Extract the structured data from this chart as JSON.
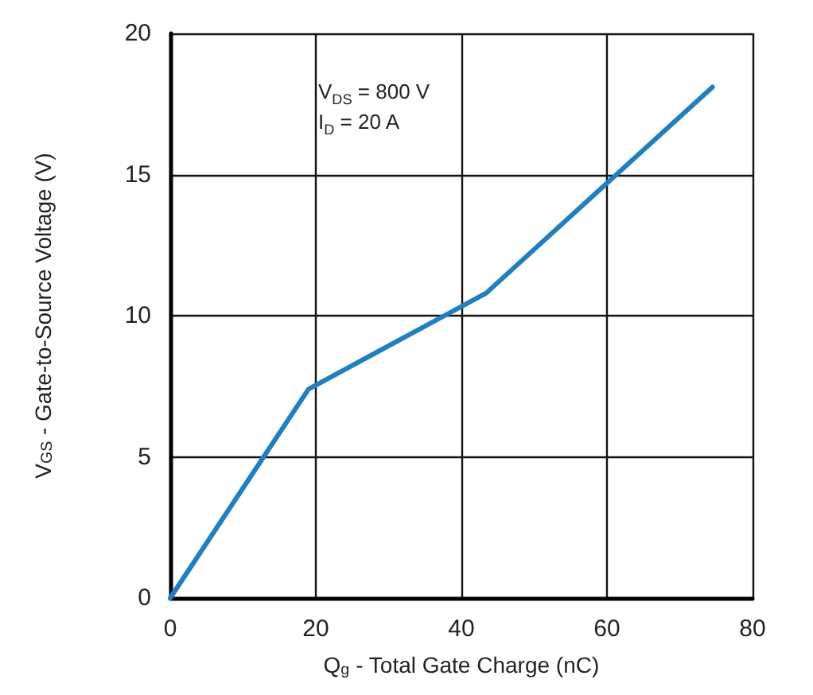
{
  "chart_data": {
    "type": "line",
    "xlabel": "Q$_{g}$ - Total Gate Charge (nC)",
    "ylabel": "V$_{GS}$ - Gate-to-Source Voltage (V)",
    "annotations": [
      "V$_{DS}$ = 800 V\nI$_{D}$ = 20 A"
    ],
    "x": [
      0,
      19,
      43.4,
      74.5
    ],
    "series": [
      {
        "color": "#1f7fc4",
        "values": [
          0,
          7.4,
          10.8,
          18.1
        ]
      }
    ],
    "xlim": [
      0,
      80
    ],
    "xticks": [
      0,
      20,
      40,
      60,
      80
    ],
    "ylim": [
      0,
      20
    ],
    "yticks": [
      0,
      5,
      10,
      15,
      20
    ],
    "grid": true,
    "marker": "none",
    "line_style": "solid"
  }
}
